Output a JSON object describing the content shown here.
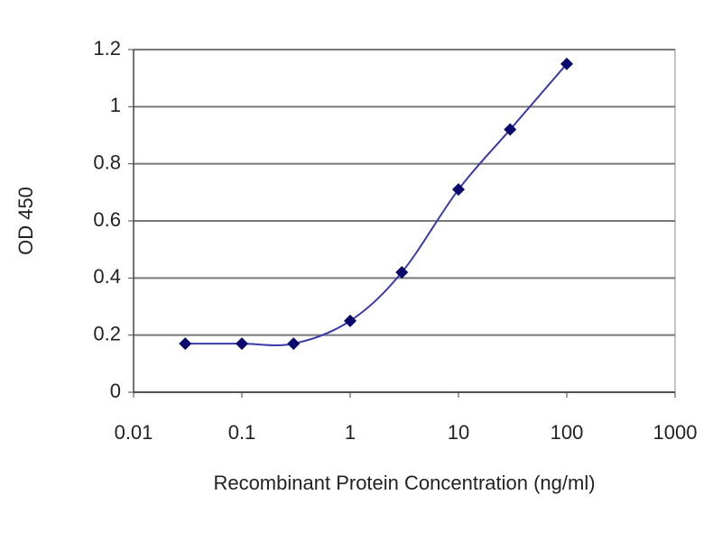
{
  "chart_data": {
    "type": "line",
    "xlabel": "Recombinant Protein Concentration (ng/ml)",
    "ylabel": "OD 450",
    "x": [
      0.03,
      0.1,
      0.3,
      1,
      3,
      10,
      30,
      100
    ],
    "values": [
      0.17,
      0.17,
      0.17,
      0.25,
      0.42,
      0.71,
      0.92,
      1.15
    ],
    "xlim": [
      0.01,
      1000
    ],
    "ylim": [
      0,
      1.2
    ],
    "xticks": [
      0.01,
      0.1,
      1,
      10,
      100,
      1000
    ],
    "yticks": [
      0,
      0.2,
      0.4,
      0.6,
      0.8,
      1,
      1.2
    ],
    "log_x": true,
    "grid": true,
    "color": "#3a3aa8",
    "marker_color": "#0a0a6e"
  }
}
